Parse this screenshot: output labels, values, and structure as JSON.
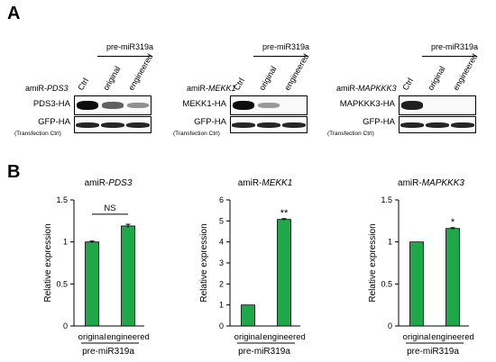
{
  "panel_a": {
    "letter": "A",
    "blots": [
      {
        "amir_prefix": "amiR-",
        "gene": "PDS3",
        "pre_label": "pre-miR319a",
        "lanes": [
          "Ctrl",
          "original",
          "engineered"
        ],
        "target_label": "PDS3-HA",
        "control_label": "GFP-HA",
        "control_sub": "(Transfection Ctrl)",
        "target_band_levels": [
          1.0,
          0.55,
          0.3
        ],
        "control_band_levels": [
          1.0,
          1.0,
          1.0
        ]
      },
      {
        "amir_prefix": "amiR-",
        "gene": "MEKK1",
        "pre_label": "pre-miR319a",
        "lanes": [
          "Ctrl",
          "original",
          "engineered"
        ],
        "target_label": "MEKK1-HA",
        "control_label": "GFP-HA",
        "control_sub": "(Transfection Ctrl)",
        "target_band_levels": [
          1.0,
          0.25,
          0.0
        ],
        "control_band_levels": [
          1.0,
          1.0,
          1.0
        ]
      },
      {
        "amir_prefix": "amiR-",
        "gene": "MAPKKK3",
        "pre_label": "pre-miR319a",
        "lanes": [
          "Ctrl",
          "original",
          "engineered"
        ],
        "target_label": "MAPKKK3-HA",
        "control_label": "GFP-HA",
        "control_sub": "(Transfection Ctrl)",
        "target_band_levels": [
          0.9,
          0.0,
          0.0
        ],
        "control_band_levels": [
          1.0,
          1.0,
          1.0
        ]
      }
    ]
  },
  "panel_b": {
    "letter": "B"
  },
  "bar_color": "#1fa84a",
  "chart_data": [
    {
      "type": "bar",
      "title_prefix": "amiR-",
      "title_gene": "PDS3",
      "categories": [
        "original",
        "engineered"
      ],
      "values": [
        1.0,
        1.19
      ],
      "errors": [
        0.01,
        0.02
      ],
      "ylabel": "Relative expression",
      "xlabel": "pre-miR319a",
      "ylim": [
        0,
        1.5
      ],
      "yticks": [
        "0",
        "0.5",
        "1",
        "1.5"
      ],
      "annotation": "NS",
      "annotation_type": "bracket"
    },
    {
      "type": "bar",
      "title_prefix": "amiR-",
      "title_gene": "MEKK1",
      "categories": [
        "original",
        "engineered"
      ],
      "values": [
        1.0,
        5.07
      ],
      "errors": [
        0.0,
        0.04
      ],
      "ylabel": "Relative expression",
      "xlabel": "pre-miR319a",
      "ylim": [
        0,
        6
      ],
      "yticks": [
        "0",
        "1",
        "2",
        "3",
        "4",
        "5",
        "6"
      ],
      "annotation": "**",
      "annotation_type": "star"
    },
    {
      "type": "bar",
      "title_prefix": "amiR-",
      "title_gene": "MAPKKK3",
      "categories": [
        "original",
        "engineered"
      ],
      "values": [
        1.0,
        1.16
      ],
      "errors": [
        0.0,
        0.01
      ],
      "ylabel": "Relative expression",
      "xlabel": "pre-miR319a",
      "ylim": [
        0,
        1.5
      ],
      "yticks": [
        "0",
        "0.5",
        "1",
        "1.5"
      ],
      "annotation": "*",
      "annotation_type": "star"
    }
  ]
}
